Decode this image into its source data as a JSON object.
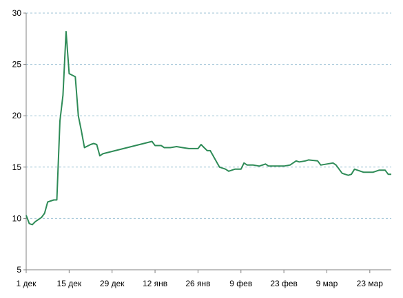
{
  "chart_data": {
    "type": "line",
    "title": "",
    "xlabel": "",
    "ylabel": "",
    "ylim": [
      5,
      30
    ],
    "y_ticks": [
      5,
      10,
      15,
      20,
      25,
      30
    ],
    "y_tick_labels": [
      "5",
      "10",
      "15",
      "20",
      "25",
      "30"
    ],
    "x_range_days": [
      0,
      119
    ],
    "x_ticks": [
      0,
      14,
      28,
      42,
      56,
      70,
      84,
      98,
      112
    ],
    "x_tick_labels": [
      "1 дек",
      "15 дек",
      "29 дек",
      "12 янв",
      "26 янв",
      "9 фев",
      "23 фев",
      "9 мар",
      "23 мар"
    ],
    "grid": "horizontal dashed",
    "colors": {
      "series": "#2e8b57",
      "grid": "#9ec3d6",
      "axis": "#808080"
    },
    "series": [
      {
        "points": [
          [
            0,
            10.3
          ],
          [
            1,
            9.5
          ],
          [
            2,
            9.4
          ],
          [
            3,
            9.7
          ],
          [
            4,
            9.9
          ],
          [
            5,
            10.1
          ],
          [
            6,
            10.5
          ],
          [
            7,
            11.6
          ],
          [
            8,
            11.7
          ],
          [
            9,
            11.8
          ],
          [
            10,
            11.8
          ],
          [
            11,
            19.5
          ],
          [
            12,
            22.0
          ],
          [
            13,
            28.2
          ],
          [
            14,
            24.1
          ],
          [
            16,
            23.8
          ],
          [
            17,
            20.0
          ],
          [
            18,
            18.5
          ],
          [
            19,
            16.9
          ],
          [
            21,
            17.2
          ],
          [
            22,
            17.3
          ],
          [
            23,
            17.2
          ],
          [
            24,
            16.1
          ],
          [
            25,
            16.3
          ],
          [
            41,
            17.5
          ],
          [
            42,
            17.1
          ],
          [
            44,
            17.1
          ],
          [
            45,
            16.9
          ],
          [
            47,
            16.9
          ],
          [
            49,
            17.0
          ],
          [
            51,
            16.9
          ],
          [
            53,
            16.8
          ],
          [
            56,
            16.8
          ],
          [
            57,
            17.2
          ],
          [
            58,
            16.9
          ],
          [
            59,
            16.6
          ],
          [
            60,
            16.6
          ],
          [
            63,
            15.0
          ],
          [
            65,
            14.8
          ],
          [
            66,
            14.6
          ],
          [
            68,
            14.8
          ],
          [
            70,
            14.8
          ],
          [
            71,
            15.4
          ],
          [
            72,
            15.2
          ],
          [
            74,
            15.2
          ],
          [
            76,
            15.1
          ],
          [
            78,
            15.3
          ],
          [
            79,
            15.1
          ],
          [
            82,
            15.1
          ],
          [
            84,
            15.1
          ],
          [
            86,
            15.2
          ],
          [
            88,
            15.6
          ],
          [
            89,
            15.5
          ],
          [
            91,
            15.6
          ],
          [
            92,
            15.7
          ],
          [
            95,
            15.6
          ],
          [
            96,
            15.2
          ],
          [
            98,
            15.3
          ],
          [
            100,
            15.4
          ],
          [
            101,
            15.2
          ],
          [
            103,
            14.4
          ],
          [
            105,
            14.2
          ],
          [
            106,
            14.3
          ],
          [
            107,
            14.8
          ],
          [
            108,
            14.7
          ],
          [
            110,
            14.5
          ],
          [
            113,
            14.5
          ],
          [
            115,
            14.7
          ],
          [
            117,
            14.7
          ],
          [
            118,
            14.3
          ],
          [
            119,
            14.3
          ]
        ]
      }
    ]
  }
}
